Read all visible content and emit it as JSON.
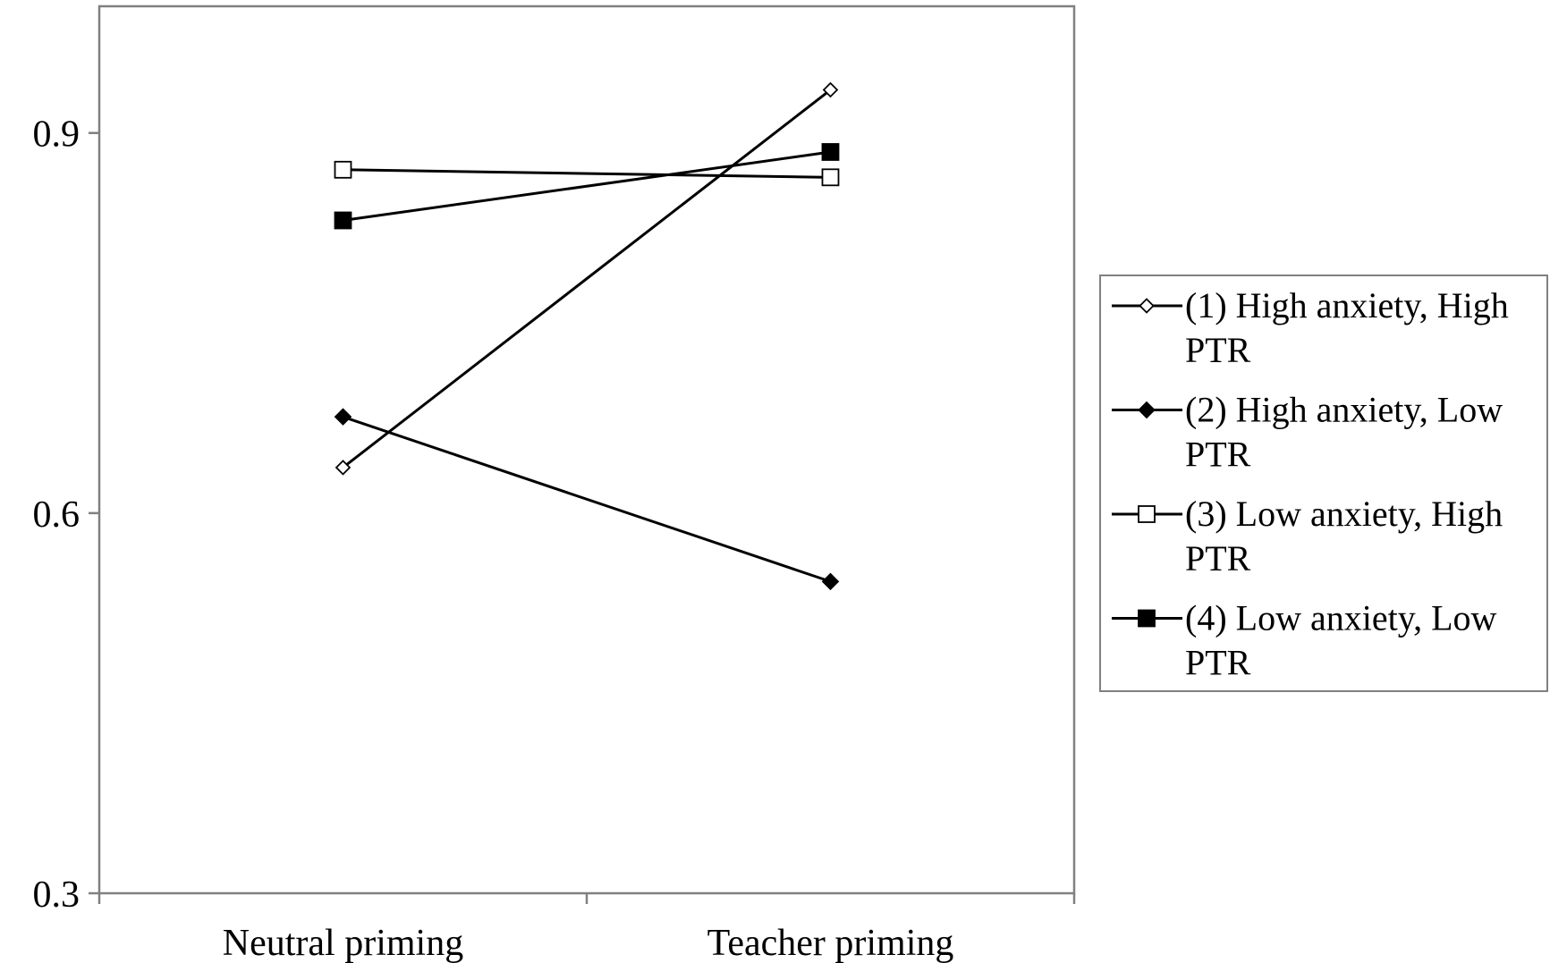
{
  "chart_data": {
    "type": "line",
    "title": "",
    "xlabel": "",
    "ylabel": "",
    "categories": [
      "Neutral priming",
      "Teacher priming"
    ],
    "ylim": [
      0.3,
      1.0
    ],
    "yticks": [
      "0.3",
      "0.6",
      "0.9"
    ],
    "ytick_values": [
      0.3,
      0.6,
      0.9
    ],
    "grid": false,
    "legend_position": "right",
    "series": [
      {
        "name": "(1) High anxiety, High PTR",
        "name_lines": [
          "(1) High anxiety, High",
          "PTR"
        ],
        "marker": "diamond-open",
        "values": [
          0.636,
          0.934
        ]
      },
      {
        "name": "(2) High anxiety, Low PTR",
        "name_lines": [
          "(2) High anxiety, Low",
          "PTR"
        ],
        "marker": "diamond-filled",
        "values": [
          0.676,
          0.546
        ]
      },
      {
        "name": "(3) Low anxiety, High PTR",
        "name_lines": [
          "(3) Low anxiety, High",
          "PTR"
        ],
        "marker": "square-open",
        "values": [
          0.871,
          0.865
        ]
      },
      {
        "name": "(4) Low anxiety, Low PTR",
        "name_lines": [
          "(4) Low anxiety, Low",
          "PTR"
        ],
        "marker": "square-filled",
        "values": [
          0.831,
          0.885
        ]
      }
    ],
    "colors": {
      "line": "#000000",
      "axis": "#808080"
    }
  }
}
